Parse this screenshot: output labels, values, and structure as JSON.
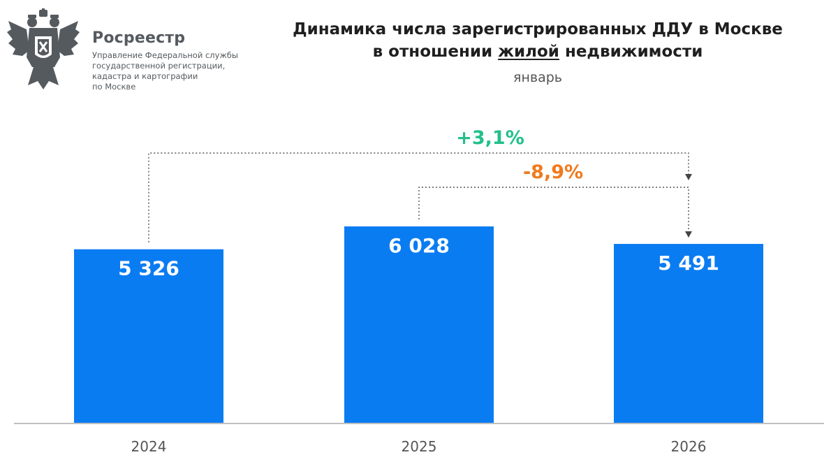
{
  "header": {
    "org_name": "Росреестр",
    "org_sub_lines": [
      "Управление Федеральной службы",
      "государственной регистрации,",
      "кадастра и картографии",
      "по Москве"
    ]
  },
  "colors": {
    "bar": "#0a7cf2",
    "positive": "#22c08a",
    "negative": "#f07a1d",
    "connector": "#555555",
    "axis": "#aaaaaa",
    "emblem": "#555a5f"
  },
  "chart_data": {
    "type": "bar",
    "title_line1": "Динамика числа зарегистрированных ДДУ в Москве",
    "title_line2_before": "в отношении ",
    "title_line2_underlined": "жилой",
    "title_line2_after": " недвижимости",
    "subtitle": "январь",
    "categories": [
      "2024",
      "2025",
      "2026"
    ],
    "values": [
      5326,
      6028,
      5491
    ],
    "value_labels": [
      "5 326",
      "6 028",
      "5 491"
    ],
    "ylim": [
      0,
      6028
    ],
    "grid": false,
    "annotations": [
      {
        "from": "2024",
        "to": "2026",
        "label": "+3,1%",
        "tone": "positive"
      },
      {
        "from": "2025",
        "to": "2026",
        "label": "-8,9%",
        "tone": "negative"
      }
    ]
  }
}
